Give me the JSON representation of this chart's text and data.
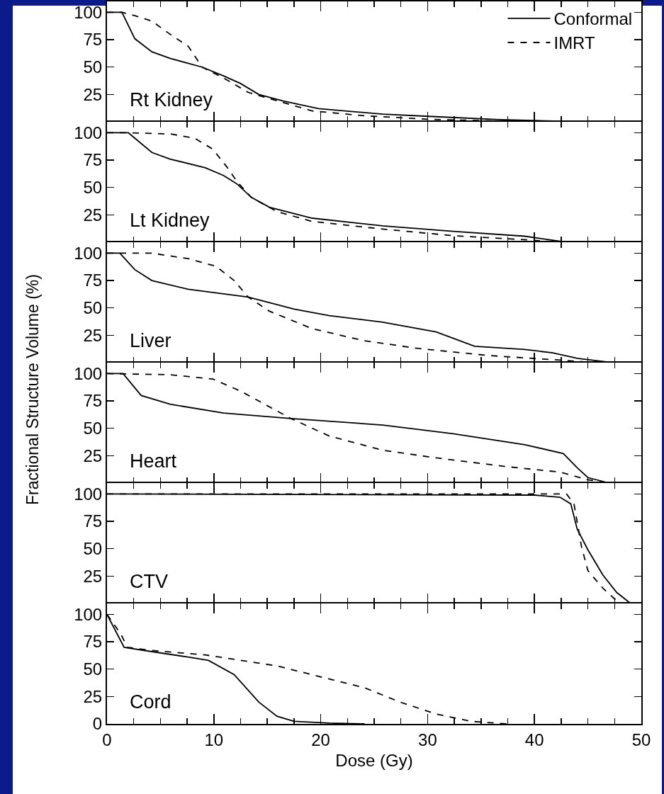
{
  "chart_data": [
    {
      "type": "line",
      "annotations": [
        "Rt Kidney"
      ],
      "legend": "top right",
      "xlim": [
        0,
        50
      ],
      "xticks": [
        0,
        {
          "value": 2.5,
          "label": null
        },
        {
          "value": 5,
          "label": null
        },
        {
          "value": 7.5,
          "label": null
        },
        10,
        {
          "value": 12.5,
          "label": null
        },
        {
          "value": 15,
          "label": null
        },
        {
          "value": 17.5,
          "label": null
        },
        20,
        {
          "value": 22.5,
          "label": null
        },
        {
          "value": 25,
          "label": null
        },
        {
          "value": 27.5,
          "label": null
        },
        30,
        {
          "value": 32.5,
          "label": null
        },
        {
          "value": 35,
          "label": null
        },
        {
          "value": 37.5,
          "label": null
        },
        40,
        {
          "value": 42.5,
          "label": null
        },
        {
          "value": 45,
          "label": null
        },
        {
          "value": 47.5,
          "label": null
        },
        50
      ],
      "ylim": [
        0,
        110
      ],
      "yticks": [
        25,
        50,
        75,
        100
      ],
      "tick_labels": "y",
      "series": [
        {
          "name": "Conformal",
          "color": "#000000",
          "line_style": "solid",
          "x": [
            0,
            1.4,
            2.6,
            4.2,
            5.9,
            8.9,
            10.9,
            12.5,
            14.2,
            16.5,
            19.8,
            25.8,
            30.1,
            36.7,
            42.4,
            44.7
          ],
          "values": [
            100,
            100,
            76,
            64,
            58,
            50,
            42,
            35,
            25,
            19,
            12,
            7,
            5,
            2,
            0.5,
            0
          ]
        },
        {
          "name": "IMRT",
          "color": "#000000",
          "line_style": "dashed",
          "x": [
            0,
            1.4,
            2.6,
            4.2,
            5.9,
            7.6,
            8.9,
            10.9,
            13.2,
            14.2,
            19.2,
            24.1,
            30.1,
            36.7,
            40.8
          ],
          "values": [
            100,
            100,
            97,
            92,
            80,
            69,
            50,
            40,
            27,
            24,
            10,
            5.5,
            2.3,
            0.7,
            0
          ]
        }
      ]
    },
    {
      "type": "line",
      "annotations": [
        "Lt Kidney"
      ],
      "xlim": [
        0,
        50
      ],
      "xticks": [
        0,
        {
          "value": 2.5,
          "label": null
        },
        {
          "value": 5,
          "label": null
        },
        {
          "value": 7.5,
          "label": null
        },
        10,
        {
          "value": 12.5,
          "label": null
        },
        {
          "value": 15,
          "label": null
        },
        {
          "value": 17.5,
          "label": null
        },
        20,
        {
          "value": 22.5,
          "label": null
        },
        {
          "value": 25,
          "label": null
        },
        {
          "value": 27.5,
          "label": null
        },
        30,
        {
          "value": 32.5,
          "label": null
        },
        {
          "value": 35,
          "label": null
        },
        {
          "value": 37.5,
          "label": null
        },
        40,
        {
          "value": 42.5,
          "label": null
        },
        {
          "value": 45,
          "label": null
        },
        {
          "value": 47.5,
          "label": null
        },
        50
      ],
      "ylim": [
        0,
        110
      ],
      "yticks": [
        25,
        50,
        75,
        100
      ],
      "tick_labels": "y",
      "series": [
        {
          "color": "#000000",
          "line_style": "solid",
          "x": [
            0,
            2,
            4.2,
            5.9,
            9.2,
            10.9,
            12.2,
            13.5,
            15.2,
            19.2,
            25.8,
            32.4,
            39.1,
            43
          ],
          "values": [
            100,
            100,
            82,
            76,
            68,
            61,
            53,
            41,
            32,
            22,
            15,
            10,
            5.5,
            0
          ]
        },
        {
          "color": "#000000",
          "line_style": "dashed",
          "x": [
            0,
            2,
            5.9,
            8.2,
            9.9,
            11.2,
            12.2,
            13.5,
            15.9,
            19.2,
            25.8,
            32.4,
            39.1,
            42.4
          ],
          "values": [
            100,
            100,
            99,
            95,
            85,
            69,
            55,
            41,
            28,
            19,
            12,
            6,
            2.3,
            0
          ]
        }
      ]
    },
    {
      "type": "line",
      "annotations": [
        "Liver"
      ],
      "xlim": [
        0,
        50
      ],
      "xticks": [
        0,
        {
          "value": 2.5,
          "label": null
        },
        {
          "value": 5,
          "label": null
        },
        {
          "value": 7.5,
          "label": null
        },
        10,
        {
          "value": 12.5,
          "label": null
        },
        {
          "value": 15,
          "label": null
        },
        {
          "value": 17.5,
          "label": null
        },
        20,
        {
          "value": 22.5,
          "label": null
        },
        {
          "value": 25,
          "label": null
        },
        {
          "value": 27.5,
          "label": null
        },
        30,
        {
          "value": 32.5,
          "label": null
        },
        {
          "value": 35,
          "label": null
        },
        {
          "value": 37.5,
          "label": null
        },
        40,
        {
          "value": 42.5,
          "label": null
        },
        {
          "value": 45,
          "label": null
        },
        {
          "value": 47.5,
          "label": null
        },
        50
      ],
      "ylim": [
        0,
        110
      ],
      "yticks": [
        25,
        50,
        75,
        100
      ],
      "tick_labels": "y",
      "series": [
        {
          "color": "#000000",
          "line_style": "solid",
          "x": [
            0,
            1.2,
            2.6,
            4.2,
            7.6,
            13.2,
            17.5,
            20.8,
            25.8,
            30.8,
            34.4,
            39.1,
            41.7,
            44,
            47.3
          ],
          "values": [
            100,
            100,
            85,
            75,
            67,
            60,
            49,
            43,
            37,
            28,
            15,
            12,
            9,
            4,
            0
          ]
        },
        {
          "color": "#000000",
          "line_style": "dashed",
          "x": [
            0,
            4.2,
            7.6,
            10.2,
            11.9,
            13.2,
            15.2,
            19.2,
            24.1,
            29.1,
            35.7,
            42.4,
            45.7
          ],
          "values": [
            100,
            100,
            95,
            88,
            75,
            60,
            47,
            31,
            20,
            13,
            6.5,
            2.3,
            0
          ]
        }
      ]
    },
    {
      "type": "line",
      "annotations": [
        "Heart"
      ],
      "ylabel": "Fractional Structure Volume (%)",
      "xlim": [
        0,
        50
      ],
      "xticks": [
        0,
        {
          "value": 2.5,
          "label": null
        },
        {
          "value": 5,
          "label": null
        },
        {
          "value": 7.5,
          "label": null
        },
        10,
        {
          "value": 12.5,
          "label": null
        },
        {
          "value": 15,
          "label": null
        },
        {
          "value": 17.5,
          "label": null
        },
        20,
        {
          "value": 22.5,
          "label": null
        },
        {
          "value": 25,
          "label": null
        },
        {
          "value": 27.5,
          "label": null
        },
        30,
        {
          "value": 32.5,
          "label": null
        },
        {
          "value": 35,
          "label": null
        },
        {
          "value": 37.5,
          "label": null
        },
        40,
        {
          "value": 42.5,
          "label": null
        },
        {
          "value": 45,
          "label": null
        },
        {
          "value": 47.5,
          "label": null
        },
        50
      ],
      "ylim": [
        0,
        110
      ],
      "yticks": [
        25,
        50,
        75,
        100
      ],
      "tick_labels": "y",
      "series": [
        {
          "color": "#000000",
          "line_style": "solid",
          "x": [
            0,
            1.5,
            3.2,
            5.9,
            10.9,
            17.2,
            25.8,
            32.4,
            39.1,
            42.7,
            44,
            45,
            47
          ],
          "values": [
            100,
            100,
            80,
            72,
            64,
            59,
            53,
            45,
            35,
            27,
            14,
            5,
            0
          ]
        },
        {
          "color": "#000000",
          "line_style": "dashed",
          "x": [
            0,
            5.9,
            9.9,
            12.5,
            17.2,
            20.8,
            25.8,
            30.8,
            37.4,
            42.4,
            45,
            47
          ],
          "values": [
            100,
            99,
            95,
            84,
            59,
            43,
            30,
            23,
            15,
            10,
            3,
            0
          ]
        }
      ]
    },
    {
      "type": "line",
      "annotations": [
        "CTV"
      ],
      "xlim": [
        0,
        50
      ],
      "xticks": [
        0,
        {
          "value": 2.5,
          "label": null
        },
        {
          "value": 5,
          "label": null
        },
        {
          "value": 7.5,
          "label": null
        },
        10,
        {
          "value": 12.5,
          "label": null
        },
        {
          "value": 15,
          "label": null
        },
        {
          "value": 17.5,
          "label": null
        },
        20,
        {
          "value": 22.5,
          "label": null
        },
        {
          "value": 25,
          "label": null
        },
        {
          "value": 27.5,
          "label": null
        },
        30,
        {
          "value": 32.5,
          "label": null
        },
        {
          "value": 35,
          "label": null
        },
        {
          "value": 37.5,
          "label": null
        },
        40,
        {
          "value": 42.5,
          "label": null
        },
        {
          "value": 45,
          "label": null
        },
        {
          "value": 47.5,
          "label": null
        },
        50
      ],
      "ylim": [
        0,
        110
      ],
      "yticks": [
        25,
        50,
        75,
        100
      ],
      "tick_labels": "y",
      "series": [
        {
          "color": "#000000",
          "line_style": "solid",
          "x": [
            0,
            40,
            42.4,
            43.4,
            44,
            45,
            46.4,
            47.7,
            49
          ],
          "values": [
            100,
            99,
            97,
            91,
            68,
            49,
            26,
            10,
            0
          ]
        },
        {
          "color": "#000000",
          "line_style": "dashed",
          "x": [
            0,
            43,
            43.7,
            44.4,
            45,
            46.4,
            47.7,
            48.4
          ],
          "values": [
            100,
            100,
            91,
            52,
            30,
            14,
            2.3,
            0
          ]
        }
      ]
    },
    {
      "type": "line",
      "annotations": [
        "Cord"
      ],
      "xlabel": "Dose (Gy)",
      "xlim": [
        0,
        50
      ],
      "xticks": [
        0,
        {
          "value": 2.5,
          "label": null
        },
        {
          "value": 5,
          "label": null
        },
        {
          "value": 7.5,
          "label": null
        },
        10,
        {
          "value": 12.5,
          "label": null
        },
        {
          "value": 15,
          "label": null
        },
        {
          "value": 17.5,
          "label": null
        },
        20,
        {
          "value": 22.5,
          "label": null
        },
        {
          "value": 25,
          "label": null
        },
        {
          "value": 27.5,
          "label": null
        },
        30,
        {
          "value": 32.5,
          "label": null
        },
        {
          "value": 35,
          "label": null
        },
        {
          "value": 37.5,
          "label": null
        },
        40,
        {
          "value": 42.5,
          "label": null
        },
        {
          "value": 45,
          "label": null
        },
        {
          "value": 47.5,
          "label": null
        },
        50
      ],
      "ylim": [
        0,
        110
      ],
      "yticks": [
        0,
        25,
        50,
        75,
        100
      ],
      "series": [
        {
          "color": "#000000",
          "line_style": "solid",
          "x": [
            0,
            1.6,
            4.2,
            7.6,
            9.5,
            11.9,
            14.2,
            15.9,
            17.5,
            20.8,
            24.1
          ],
          "values": [
            100,
            70,
            66,
            61,
            58,
            45,
            20,
            7,
            2.3,
            0.7,
            0
          ]
        },
        {
          "color": "#000000",
          "line_style": "dashed",
          "x": [
            0,
            1.3,
            1.9,
            4.2,
            9.2,
            15.9,
            20.8,
            24.1,
            27.4,
            30.8,
            34.1,
            37.4
          ],
          "values": [
            100,
            82,
            70,
            67,
            63,
            53,
            41,
            33,
            20,
            9,
            2.3,
            0
          ]
        }
      ]
    }
  ]
}
